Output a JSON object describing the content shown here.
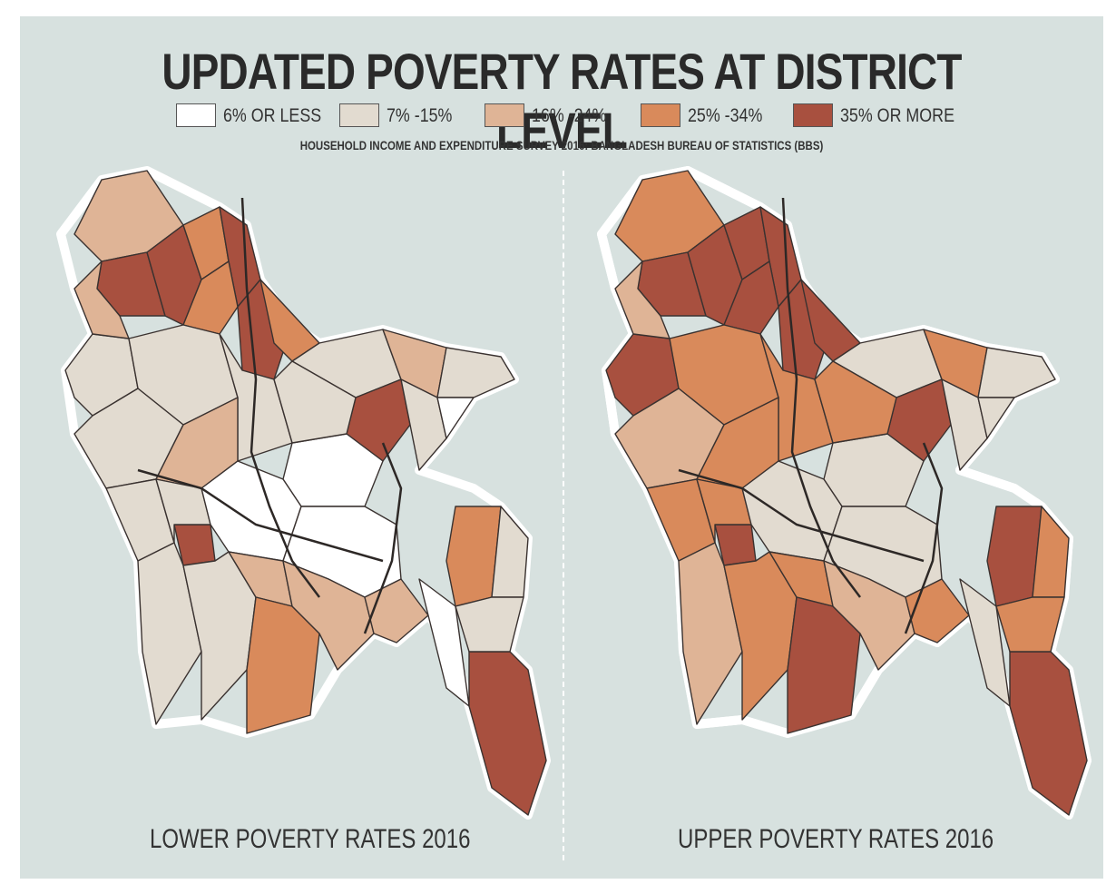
{
  "title": "UPDATED POVERTY RATES AT DISTRICT LEVEL",
  "legend": [
    {
      "label": "6% OR LESS",
      "color": "#ffffff"
    },
    {
      "label": "7% -15%",
      "color": "#e2dbd0"
    },
    {
      "label": "16% -24%",
      "color": "#dfb496"
    },
    {
      "label": "25% -34%",
      "color": "#d98a5b"
    },
    {
      "label": "35% OR MORE",
      "color": "#a8503f"
    }
  ],
  "source": "HOUSEHOLD INCOME AND EXPENDITURE SURVEY 2016: BANGLADESH BUREAU OF STATISTICS (BBS)",
  "maps": [
    {
      "caption": "LOWER POVERTY RATES 2016"
    },
    {
      "caption": "UPPER POVERTY RATES 2016"
    }
  ]
}
